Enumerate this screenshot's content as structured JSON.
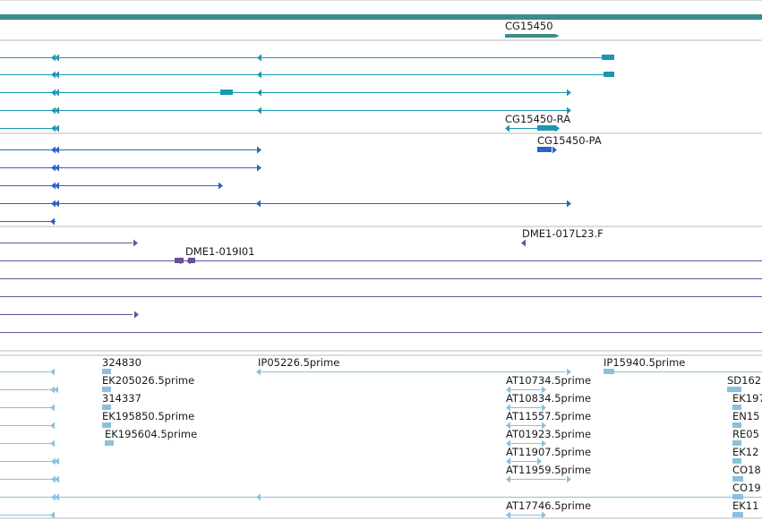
{
  "colors": {
    "gene": "#3a8c8c",
    "transcript_a": "#1b98b0",
    "transcript_b": "#2e62c1",
    "clone": "#6a4f9a",
    "est": "#8cc0dc",
    "separator": "#b8b8b8"
  },
  "tracks": {
    "gene": {
      "label": "CG15450"
    },
    "transcripts_a": {
      "labels": [
        "CG15450-RA"
      ]
    },
    "transcripts_b": {
      "labels": [
        "CG15450-PA"
      ]
    },
    "clones": {
      "labels": [
        "DME1-017L23.F",
        "DME1-019I01"
      ]
    },
    "ests": {
      "labels": [
        "324830",
        "IP05226.5prime",
        "IP15940.5prime",
        "EK205026.5prime",
        "AT10734.5prime",
        "SD162",
        "314337",
        "AT10834.5prime",
        "EK197",
        "EK195850.5prime",
        "AT11557.5prime",
        "EN15",
        "EK195604.5prime",
        "AT01923.5prime",
        "RE05",
        "AT11907.5prime",
        "EK12",
        "AT11959.5prime",
        "CO18",
        "CO19",
        "AT17746.5prime",
        "EK11"
      ]
    }
  }
}
